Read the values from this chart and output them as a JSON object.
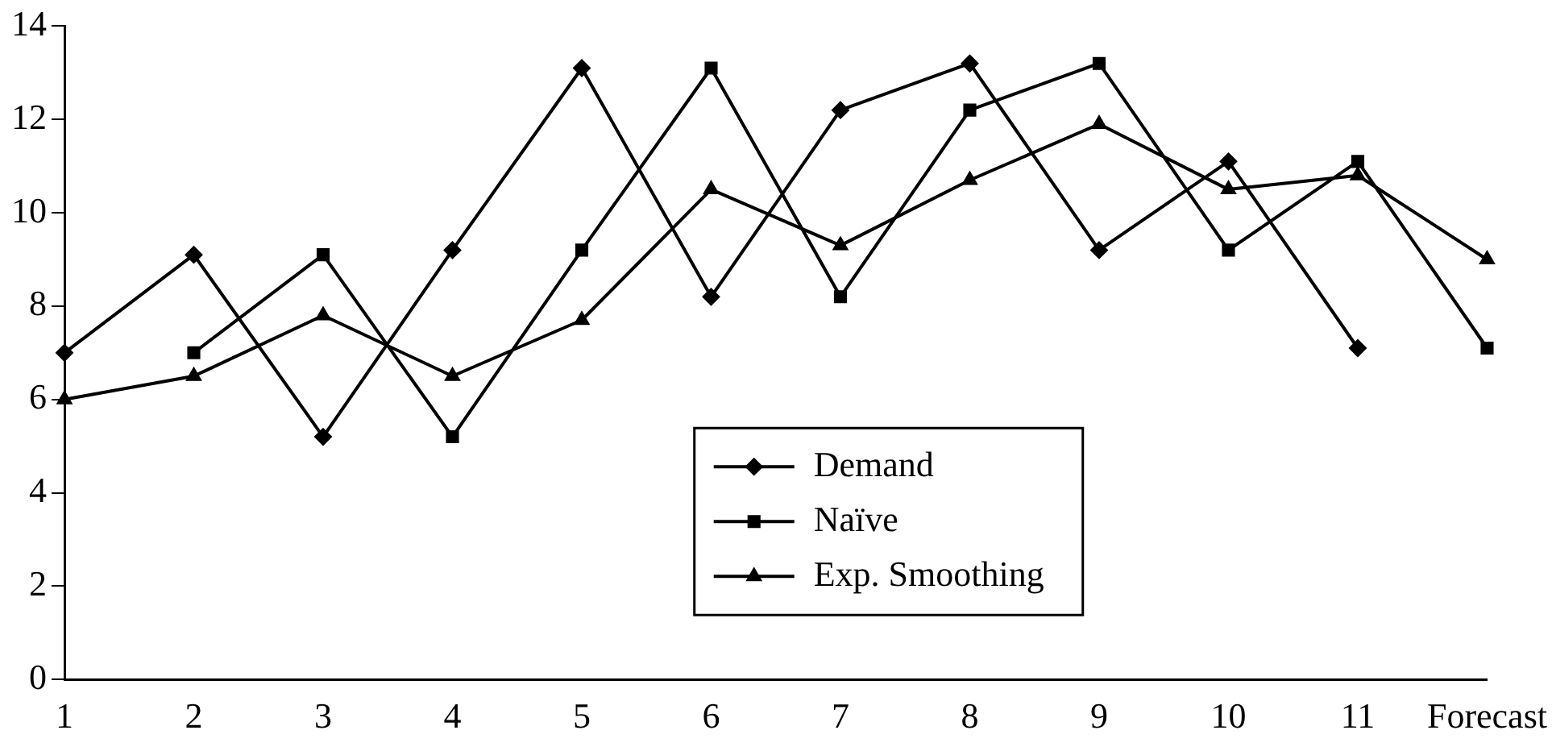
{
  "chart_data": {
    "type": "line",
    "categories": [
      "1",
      "2",
      "3",
      "4",
      "5",
      "6",
      "7",
      "8",
      "9",
      "10",
      "11",
      "Forecast"
    ],
    "series": [
      {
        "name": "Demand",
        "color": "#000000",
        "marker": "diamond",
        "values": [
          7.0,
          9.1,
          5.2,
          9.2,
          13.1,
          8.2,
          12.2,
          13.2,
          9.2,
          11.1,
          7.1,
          null
        ]
      },
      {
        "name": "Naïve",
        "color": "#000000",
        "marker": "square",
        "values": [
          null,
          7.0,
          9.1,
          5.2,
          9.2,
          13.1,
          8.2,
          12.2,
          13.2,
          9.2,
          11.1,
          7.1
        ]
      },
      {
        "name": "Exp. Smoothing",
        "color": "#000000",
        "marker": "triangle",
        "values": [
          6.0,
          6.5,
          7.8,
          6.5,
          7.7,
          10.5,
          9.3,
          10.7,
          11.9,
          10.5,
          10.8,
          9.0
        ]
      }
    ],
    "ylim": [
      0,
      14
    ],
    "yticks": [
      0,
      2,
      4,
      6,
      8,
      10,
      12,
      14
    ],
    "grid": false,
    "legend": "bottom",
    "line_style": "solid"
  }
}
